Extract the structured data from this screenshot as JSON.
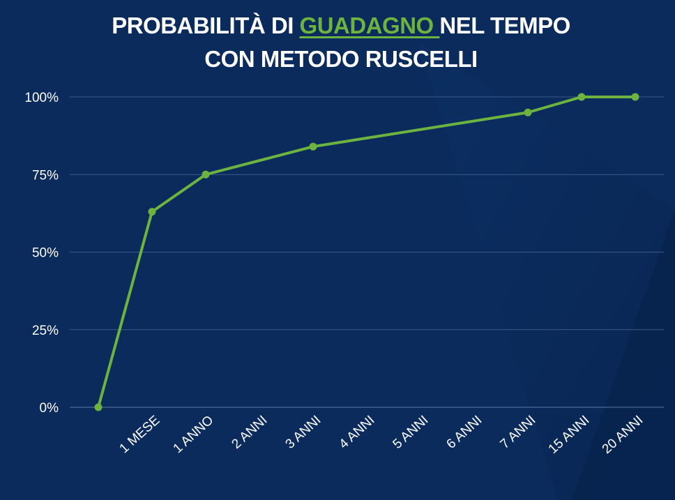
{
  "title": {
    "before": "PROBABILITÀ DI ",
    "highlight": "GUADAGNO ",
    "after": "NEL TEMPO",
    "line2": "CON METODO RUSCELLI"
  },
  "colors": {
    "background": "#0a2b5c",
    "line": "#6cb33f",
    "grid": "#5a76a0",
    "text": "#ffffff"
  },
  "chart_data": {
    "type": "line",
    "title": "PROBABILITÀ DI GUADAGNO NEL TEMPO CON METODO RUSCELLI",
    "xlabel": "",
    "ylabel": "",
    "categories": [
      "",
      "1 MESE",
      "1 ANNO",
      "2 ANNI",
      "3 ANNI",
      "4 ANNI",
      "5 ANNI",
      "6 ANNI",
      "7 ANNI",
      "15 ANNI",
      "20 ANNI"
    ],
    "series": [
      {
        "name": "",
        "points": [
          {
            "x": 0,
            "y": 0
          },
          {
            "x": 1,
            "y": 63
          },
          {
            "x": 2,
            "y": 75
          },
          {
            "x": 4,
            "y": 84
          },
          {
            "x": 8,
            "y": 95
          },
          {
            "x": 9,
            "y": 100
          },
          {
            "x": 10,
            "y": 100
          }
        ]
      }
    ],
    "yticks": [
      "0%",
      "25%",
      "50%",
      "75%",
      "100%"
    ],
    "ytick_values": [
      0,
      25,
      50,
      75,
      100
    ],
    "ylim": [
      0,
      100
    ],
    "grid": true,
    "legend": "none"
  }
}
